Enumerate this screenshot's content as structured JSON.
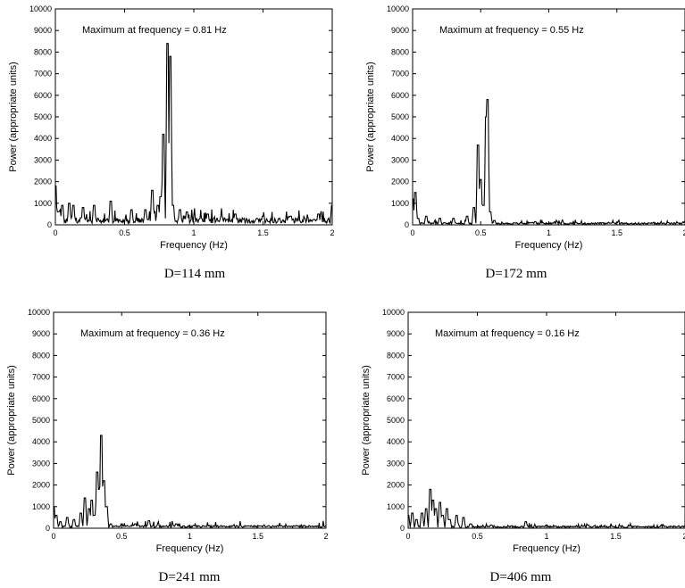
{
  "chart_data": [
    {
      "type": "line",
      "caption": "D=114 mm",
      "annotation": "Maximum at frequency = 0.81 Hz",
      "xlabel": "Frequency (Hz)",
      "ylabel": "Power (appropriate units)",
      "xlim": [
        0,
        2
      ],
      "ylim": [
        0,
        10000
      ],
      "xticks": [
        0,
        0.5,
        1,
        1.5,
        2
      ],
      "xtick_labels": [
        "0",
        "0.5",
        "1",
        "1.5",
        "2"
      ],
      "yticks": [
        0,
        1000,
        2000,
        3000,
        4000,
        5000,
        6000,
        7000,
        8000,
        9000,
        10000
      ],
      "ytick_labels": [
        "0",
        "1000",
        "2000",
        "3000",
        "4000",
        "5000",
        "6000",
        "7000",
        "8000",
        "9000",
        "10000"
      ],
      "grid": false,
      "series": [
        {
          "peaks": [
            [
              0,
              1800
            ],
            [
              0.02,
              600
            ],
            [
              0.05,
              900
            ],
            [
              0.1,
              1000
            ],
            [
              0.13,
              900
            ],
            [
              0.2,
              800
            ],
            [
              0.28,
              900
            ],
            [
              0.4,
              1100
            ],
            [
              0.55,
              700
            ],
            [
              0.65,
              700
            ],
            [
              0.7,
              1600
            ],
            [
              0.74,
              900
            ],
            [
              0.76,
              1300
            ],
            [
              0.78,
              4200
            ],
            [
              0.81,
              8400
            ],
            [
              0.83,
              7800
            ],
            [
              0.85,
              900
            ],
            [
              0.9,
              700
            ],
            [
              0.95,
              600
            ],
            [
              1.1,
              500
            ],
            [
              1.2,
              400
            ],
            [
              1.3,
              500
            ],
            [
              1.5,
              400
            ],
            [
              1.7,
              400
            ],
            [
              1.9,
              500
            ],
            [
              2.0,
              900
            ]
          ],
          "baseline": 250,
          "noise": 250,
          "seed": 11
        }
      ]
    },
    {
      "type": "line",
      "caption": "D=172 mm",
      "annotation": "Maximum at frequency = 0.55 Hz",
      "xlabel": "Frequency (Hz)",
      "ylabel": "Power (appropriate units)",
      "xlim": [
        0,
        2
      ],
      "ylim": [
        0,
        10000
      ],
      "xticks": [
        0,
        0.5,
        1,
        1.5,
        2
      ],
      "xtick_labels": [
        "0",
        "0.5",
        "1",
        "1.5",
        "2"
      ],
      "yticks": [
        0,
        1000,
        2000,
        3000,
        4000,
        5000,
        6000,
        7000,
        8000,
        9000,
        10000
      ],
      "ytick_labels": [
        "0",
        "1000",
        "2000",
        "3000",
        "4000",
        "5000",
        "6000",
        "7000",
        "8000",
        "9000",
        "10000"
      ],
      "grid": false,
      "series": [
        {
          "peaks": [
            [
              0,
              1200
            ],
            [
              0.02,
              1500
            ],
            [
              0.04,
              300
            ],
            [
              0.1,
              400
            ],
            [
              0.2,
              300
            ],
            [
              0.3,
              300
            ],
            [
              0.4,
              400
            ],
            [
              0.45,
              800
            ],
            [
              0.48,
              3700
            ],
            [
              0.5,
              2100
            ],
            [
              0.52,
              900
            ],
            [
              0.54,
              5000
            ],
            [
              0.55,
              5800
            ],
            [
              0.57,
              600
            ],
            [
              0.6,
              200
            ],
            [
              0.9,
              150
            ],
            [
              1.2,
              100
            ],
            [
              1.5,
              100
            ],
            [
              2.0,
              100
            ]
          ],
          "baseline": 80,
          "noise": 80,
          "seed": 23
        }
      ]
    },
    {
      "type": "line",
      "caption": "D=241 mm",
      "annotation": "Maximum at frequency = 0.36 Hz",
      "xlabel": "Frequency (Hz)",
      "ylabel": "Power (appropriate units)",
      "xlim": [
        0,
        2
      ],
      "ylim": [
        0,
        10000
      ],
      "xticks": [
        0,
        0.5,
        1,
        1.5,
        2
      ],
      "xtick_labels": [
        "0",
        "0.5",
        "1",
        "1.5",
        "2"
      ],
      "yticks": [
        0,
        1000,
        2000,
        3000,
        4000,
        5000,
        6000,
        7000,
        8000,
        9000,
        10000
      ],
      "ytick_labels": [
        "0",
        "1000",
        "2000",
        "3000",
        "4000",
        "5000",
        "6000",
        "7000",
        "8000",
        "9000",
        "10000"
      ],
      "grid": false,
      "series": [
        {
          "peaks": [
            [
              0,
              1000
            ],
            [
              0.02,
              600
            ],
            [
              0.05,
              300
            ],
            [
              0.1,
              500
            ],
            [
              0.15,
              400
            ],
            [
              0.2,
              700
            ],
            [
              0.23,
              1400
            ],
            [
              0.26,
              900
            ],
            [
              0.28,
              1300
            ],
            [
              0.3,
              600
            ],
            [
              0.32,
              2600
            ],
            [
              0.33,
              1800
            ],
            [
              0.35,
              4300
            ],
            [
              0.37,
              2200
            ],
            [
              0.39,
              1000
            ],
            [
              0.42,
              200
            ],
            [
              0.5,
              200
            ],
            [
              0.6,
              200
            ],
            [
              0.7,
              350
            ],
            [
              0.9,
              200
            ],
            [
              1.1,
              100
            ],
            [
              1.5,
              100
            ],
            [
              2.0,
              100
            ]
          ],
          "baseline": 100,
          "noise": 120,
          "seed": 37
        }
      ]
    },
    {
      "type": "line",
      "caption": "D=406 mm",
      "annotation": "Maximum at frequency = 0.16 Hz",
      "xlabel": "Frequency (Hz)",
      "ylabel": "Power (appropriate units)",
      "xlim": [
        0,
        2
      ],
      "ylim": [
        0,
        10000
      ],
      "xticks": [
        0,
        0.5,
        1,
        1.5,
        2
      ],
      "xtick_labels": [
        "0",
        "0.5",
        "1",
        "1.5",
        "2"
      ],
      "yticks": [
        0,
        1000,
        2000,
        3000,
        4000,
        5000,
        6000,
        7000,
        8000,
        9000,
        10000
      ],
      "ytick_labels": [
        "0",
        "1000",
        "2000",
        "3000",
        "4000",
        "5000",
        "6000",
        "7000",
        "8000",
        "9000",
        "10000"
      ],
      "grid": false,
      "series": [
        {
          "peaks": [
            [
              0,
              600
            ],
            [
              0.03,
              700
            ],
            [
              0.06,
              400
            ],
            [
              0.1,
              700
            ],
            [
              0.13,
              900
            ],
            [
              0.16,
              1800
            ],
            [
              0.18,
              1300
            ],
            [
              0.2,
              900
            ],
            [
              0.23,
              1200
            ],
            [
              0.25,
              600
            ],
            [
              0.28,
              900
            ],
            [
              0.3,
              400
            ],
            [
              0.35,
              600
            ],
            [
              0.4,
              500
            ],
            [
              0.45,
              200
            ],
            [
              0.6,
              150
            ],
            [
              0.85,
              300
            ],
            [
              1.0,
              150
            ],
            [
              1.3,
              150
            ],
            [
              1.6,
              100
            ],
            [
              2.0,
              100
            ]
          ],
          "baseline": 80,
          "noise": 80,
          "seed": 51
        }
      ]
    }
  ]
}
